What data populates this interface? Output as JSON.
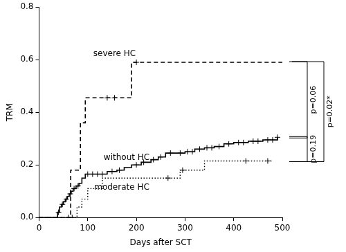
{
  "chart_data": {
    "type": "line",
    "x_label": "Days after SCT",
    "y_label": "TRM",
    "xlim": [
      0,
      500
    ],
    "xticks": [
      0,
      100,
      200,
      300,
      400,
      500
    ],
    "ylim": [
      0,
      0.8
    ],
    "yticks": [
      {
        "value": 0,
        "label": "0.0"
      },
      {
        "value": 0.2,
        "label": "0.2"
      },
      {
        "value": 0.4,
        "label": "0.4"
      },
      {
        "value": 0.6,
        "label": "0.6"
      },
      {
        "value": 0.8,
        "label": "0.8"
      }
    ],
    "grid": false,
    "series": [
      {
        "name": "severe HC",
        "type": "step",
        "color": "#000000",
        "line_style": "dashed",
        "marker": "cross",
        "x": [
          0,
          65,
          85,
          95,
          190,
          500
        ],
        "values": [
          0,
          0.18,
          0.36,
          0.455,
          0.59,
          0.59
        ],
        "censored_x": [
          140,
          155,
          200
        ],
        "censored_values": [
          0.455,
          0.455,
          0.59
        ]
      },
      {
        "name": "without HC",
        "type": "step",
        "color": "#000000",
        "line_style": "solid",
        "marker": "cross",
        "x": [
          0,
          38,
          42,
          46,
          50,
          54,
          58,
          62,
          66,
          70,
          76,
          82,
          88,
          95,
          140,
          160,
          175,
          190,
          210,
          230,
          245,
          260,
          300,
          320,
          340,
          360,
          380,
          400,
          430,
          460,
          490
        ],
        "values": [
          0,
          0.02,
          0.04,
          0.05,
          0.06,
          0.07,
          0.08,
          0.09,
          0.1,
          0.11,
          0.12,
          0.13,
          0.15,
          0.165,
          0.175,
          0.18,
          0.19,
          0.2,
          0.21,
          0.22,
          0.23,
          0.245,
          0.25,
          0.26,
          0.265,
          0.27,
          0.28,
          0.285,
          0.29,
          0.295,
          0.305
        ],
        "censored_x": [
          40,
          48,
          56,
          64,
          72,
          80,
          100,
          110,
          120,
          130,
          150,
          165,
          200,
          215,
          235,
          250,
          270,
          290,
          305,
          315,
          330,
          345,
          355,
          370,
          390,
          410,
          420,
          440,
          450,
          470,
          480,
          490
        ],
        "censored_values": [
          0.02,
          0.05,
          0.07,
          0.09,
          0.11,
          0.12,
          0.165,
          0.165,
          0.165,
          0.165,
          0.175,
          0.18,
          0.2,
          0.21,
          0.22,
          0.23,
          0.245,
          0.245,
          0.25,
          0.25,
          0.26,
          0.265,
          0.265,
          0.27,
          0.28,
          0.285,
          0.285,
          0.29,
          0.29,
          0.295,
          0.295,
          0.305
        ]
      },
      {
        "name": "moderate HC",
        "type": "step",
        "color": "#000000",
        "line_style": "dotted",
        "marker": "cross",
        "x": [
          0,
          78,
          88,
          100,
          130,
          290,
          340,
          480
        ],
        "values": [
          0,
          0.04,
          0.07,
          0.11,
          0.15,
          0.18,
          0.215,
          0.215
        ],
        "censored_x": [
          60,
          68,
          265,
          295,
          425,
          470
        ],
        "censored_values": [
          0,
          0,
          0.15,
          0.18,
          0.215,
          0.215
        ]
      }
    ],
    "annotations": [
      {
        "text": "p=0.06",
        "between": [
          "severe HC",
          "without HC"
        ]
      },
      {
        "text": "p=0.19",
        "between": [
          "without HC",
          "moderate HC"
        ]
      },
      {
        "text": "p=0.02*",
        "between": [
          "severe HC",
          "moderate HC"
        ]
      }
    ]
  }
}
